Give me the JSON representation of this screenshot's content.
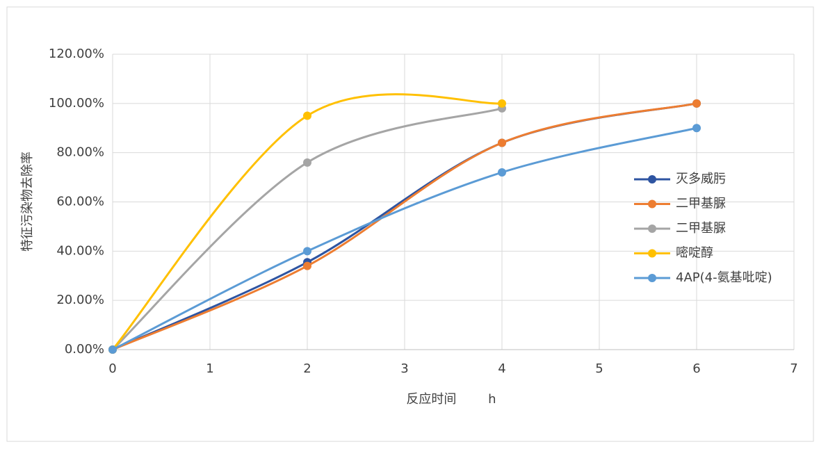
{
  "chart_data": {
    "type": "line",
    "x_label": "反应时间        h",
    "y_label": "特征污染物去除率",
    "xlim": [
      0,
      7
    ],
    "xticks": [
      0,
      1,
      2,
      3,
      4,
      5,
      6,
      7
    ],
    "ylim": [
      0,
      120
    ],
    "yticks": [
      {
        "value": 0,
        "label": "0.00%"
      },
      {
        "value": 20,
        "label": "20.00%"
      },
      {
        "value": 40,
        "label": "40.00%"
      },
      {
        "value": 60,
        "label": "60.00%"
      },
      {
        "value": 80,
        "label": "80.00%"
      },
      {
        "value": 100,
        "label": "100.00%"
      },
      {
        "value": 120,
        "label": "120.00%"
      }
    ],
    "grid": true,
    "smooth": true,
    "legend": "right",
    "series": [
      {
        "name": "灭多威肟",
        "color": "#2e54a1",
        "x": [
          0,
          2,
          4,
          6
        ],
        "values": [
          0,
          35.5,
          84,
          100
        ]
      },
      {
        "name": "二甲基脲",
        "color": "#ed7d31",
        "x": [
          0,
          2,
          4,
          6
        ],
        "values": [
          0,
          34,
          84,
          100
        ]
      },
      {
        "name": "二甲基脲",
        "color": "#a5a5a5",
        "x": [
          0,
          2,
          4
        ],
        "values": [
          0,
          76,
          98
        ]
      },
      {
        "name": "嘧啶醇",
        "color": "#ffc000",
        "x": [
          0,
          2,
          4
        ],
        "values": [
          0,
          95,
          100
        ]
      },
      {
        "name": "4AP(4-氨基吡啶)",
        "color": "#5b9bd5",
        "x": [
          0,
          2,
          4,
          6
        ],
        "values": [
          0,
          40,
          72,
          90
        ]
      }
    ]
  }
}
